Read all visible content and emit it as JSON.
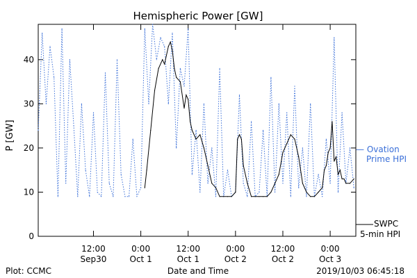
{
  "chart_data": {
    "type": "line",
    "title": "Hemispheric Power [GW]",
    "xlabel": "Date and Time",
    "ylabel": "P [GW]",
    "ylim": [
      0,
      48
    ],
    "xlim": [
      "2019-09-29T22:00",
      "2019-10-03T06:30"
    ],
    "y_ticks": [
      0,
      10,
      20,
      30,
      40
    ],
    "x_ticks": [
      {
        "t": "2019-09-30T12:00",
        "line1": "12:00",
        "line2": "Sep30"
      },
      {
        "t": "2019-10-01T00:00",
        "line1": "0:00",
        "line2": "Oct 1"
      },
      {
        "t": "2019-10-01T12:00",
        "line1": "12:00",
        "line2": "Oct 1"
      },
      {
        "t": "2019-10-02T00:00",
        "line1": "0:00",
        "line2": "Oct 2"
      },
      {
        "t": "2019-10-02T12:00",
        "line1": "12:00",
        "line2": "Oct 2"
      },
      {
        "t": "2019-10-03T00:00",
        "line1": "0:00",
        "line2": "Oct 3"
      }
    ],
    "grid": false,
    "legend": "right",
    "series": [
      {
        "name": "SWPC 5-min HPI",
        "color": "#000000",
        "style": "solid",
        "label_line1": "SWPC",
        "label_line2": "5-min HPI",
        "x": [
          "2019-10-01T01:00",
          "2019-10-01T01:30",
          "2019-10-01T02:30",
          "2019-10-01T03:30",
          "2019-10-01T04:30",
          "2019-10-01T05:30",
          "2019-10-01T06:00",
          "2019-10-01T06:30",
          "2019-10-01T07:00",
          "2019-10-01T07:30",
          "2019-10-01T08:00",
          "2019-10-01T08:30",
          "2019-10-01T09:00",
          "2019-10-01T10:00",
          "2019-10-01T11:00",
          "2019-10-01T11:30",
          "2019-10-01T12:00",
          "2019-10-01T12:30",
          "2019-10-01T13:00",
          "2019-10-01T14:00",
          "2019-10-01T15:00",
          "2019-10-01T16:00",
          "2019-10-01T17:00",
          "2019-10-01T18:00",
          "2019-10-01T19:00",
          "2019-10-01T20:00",
          "2019-10-01T21:00",
          "2019-10-01T22:00",
          "2019-10-01T23:00",
          "2019-10-02T00:00",
          "2019-10-02T00:30",
          "2019-10-02T01:00",
          "2019-10-02T01:30",
          "2019-10-02T02:00",
          "2019-10-02T03:00",
          "2019-10-02T04:00",
          "2019-10-02T05:00",
          "2019-10-02T06:00",
          "2019-10-02T07:00",
          "2019-10-02T08:00",
          "2019-10-02T09:00",
          "2019-10-02T10:00",
          "2019-10-02T11:00",
          "2019-10-02T12:00",
          "2019-10-02T13:00",
          "2019-10-02T14:00",
          "2019-10-02T15:00",
          "2019-10-02T16:00",
          "2019-10-02T17:00",
          "2019-10-02T18:00",
          "2019-10-02T19:00",
          "2019-10-02T20:00",
          "2019-10-02T21:00",
          "2019-10-02T22:00",
          "2019-10-02T22:30",
          "2019-10-02T23:00",
          "2019-10-02T23:30",
          "2019-10-03T00:00",
          "2019-10-03T00:30",
          "2019-10-03T01:00",
          "2019-10-03T01:30",
          "2019-10-03T02:00",
          "2019-10-03T02:30",
          "2019-10-03T03:00",
          "2019-10-03T03:30",
          "2019-10-03T04:00",
          "2019-10-03T05:00",
          "2019-10-03T06:00"
        ],
        "y": [
          11,
          15,
          24,
          33,
          38,
          40,
          39,
          41,
          43,
          44,
          42,
          38,
          36,
          35,
          29,
          32,
          31,
          26,
          24,
          22,
          23,
          20,
          16,
          12,
          11,
          9,
          9,
          9,
          9,
          10,
          22,
          23,
          22,
          16,
          12,
          9,
          9,
          9,
          9,
          9,
          10,
          12,
          14,
          19,
          21,
          23,
          22,
          18,
          12,
          10,
          9,
          9,
          10,
          11,
          15,
          16,
          19,
          20,
          26,
          17,
          18,
          14,
          15,
          13,
          13,
          12,
          12,
          13
        ]
      },
      {
        "name": "Ovation Prime HPI",
        "color": "#3a6fd8",
        "style": "dotted",
        "label_line1": "— Ovation",
        "label_line2": "Prime HPI",
        "x": [
          "2019-09-29T22:00",
          "2019-09-29T23:00",
          "2019-09-30T00:00",
          "2019-09-30T01:00",
          "2019-09-30T02:00",
          "2019-09-30T03:00",
          "2019-09-30T04:00",
          "2019-09-30T05:00",
          "2019-09-30T06:00",
          "2019-09-30T07:00",
          "2019-09-30T08:00",
          "2019-09-30T09:00",
          "2019-09-30T10:00",
          "2019-09-30T11:00",
          "2019-09-30T12:00",
          "2019-09-30T13:00",
          "2019-09-30T14:00",
          "2019-09-30T15:00",
          "2019-09-30T16:00",
          "2019-09-30T17:00",
          "2019-09-30T18:00",
          "2019-09-30T19:00",
          "2019-09-30T20:00",
          "2019-09-30T21:00",
          "2019-09-30T22:00",
          "2019-09-30T23:00",
          "2019-10-01T00:00",
          "2019-10-01T01:00",
          "2019-10-01T02:00",
          "2019-10-01T03:00",
          "2019-10-01T04:00",
          "2019-10-01T05:00",
          "2019-10-01T06:00",
          "2019-10-01T07:00",
          "2019-10-01T08:00",
          "2019-10-01T09:00",
          "2019-10-01T10:00",
          "2019-10-01T11:00",
          "2019-10-01T12:00",
          "2019-10-01T13:00",
          "2019-10-01T14:00",
          "2019-10-01T15:00",
          "2019-10-01T16:00",
          "2019-10-01T17:00",
          "2019-10-01T18:00",
          "2019-10-01T19:00",
          "2019-10-01T20:00",
          "2019-10-01T21:00",
          "2019-10-01T22:00",
          "2019-10-01T23:00",
          "2019-10-02T00:00",
          "2019-10-02T01:00",
          "2019-10-02T02:00",
          "2019-10-02T03:00",
          "2019-10-02T04:00",
          "2019-10-02T05:00",
          "2019-10-02T06:00",
          "2019-10-02T07:00",
          "2019-10-02T08:00",
          "2019-10-02T09:00",
          "2019-10-02T10:00",
          "2019-10-02T11:00",
          "2019-10-02T12:00",
          "2019-10-02T13:00",
          "2019-10-02T14:00",
          "2019-10-02T15:00",
          "2019-10-02T16:00",
          "2019-10-02T17:00",
          "2019-10-02T18:00",
          "2019-10-02T19:00",
          "2019-10-02T20:00",
          "2019-10-02T21:00",
          "2019-10-02T22:00",
          "2019-10-02T23:00",
          "2019-10-03T00:00",
          "2019-10-03T01:00",
          "2019-10-03T02:00",
          "2019-10-03T03:00",
          "2019-10-03T04:00",
          "2019-10-03T05:00",
          "2019-10-03T06:00"
        ],
        "y": [
          24,
          46,
          30,
          43,
          36,
          9,
          47,
          12,
          40,
          25,
          9,
          30,
          15,
          9,
          28,
          10,
          9,
          37,
          12,
          9,
          40,
          14,
          9,
          9,
          22,
          9,
          11,
          47,
          30,
          48,
          40,
          45,
          43,
          30,
          46,
          20,
          38,
          34,
          47,
          14,
          24,
          10,
          30,
          12,
          20,
          9,
          38,
          9,
          15,
          9,
          10,
          32,
          12,
          9,
          26,
          9,
          10,
          24,
          9,
          36,
          10,
          30,
          12,
          28,
          9,
          34,
          11,
          20,
          9,
          30,
          9,
          14,
          9,
          22,
          12,
          45,
          10,
          28,
          12,
          20,
          11
        ]
      }
    ],
    "annotations": {
      "plot_label": "Plot: CCMC",
      "timestamp": "2019/10/03 06:45:18"
    }
  }
}
